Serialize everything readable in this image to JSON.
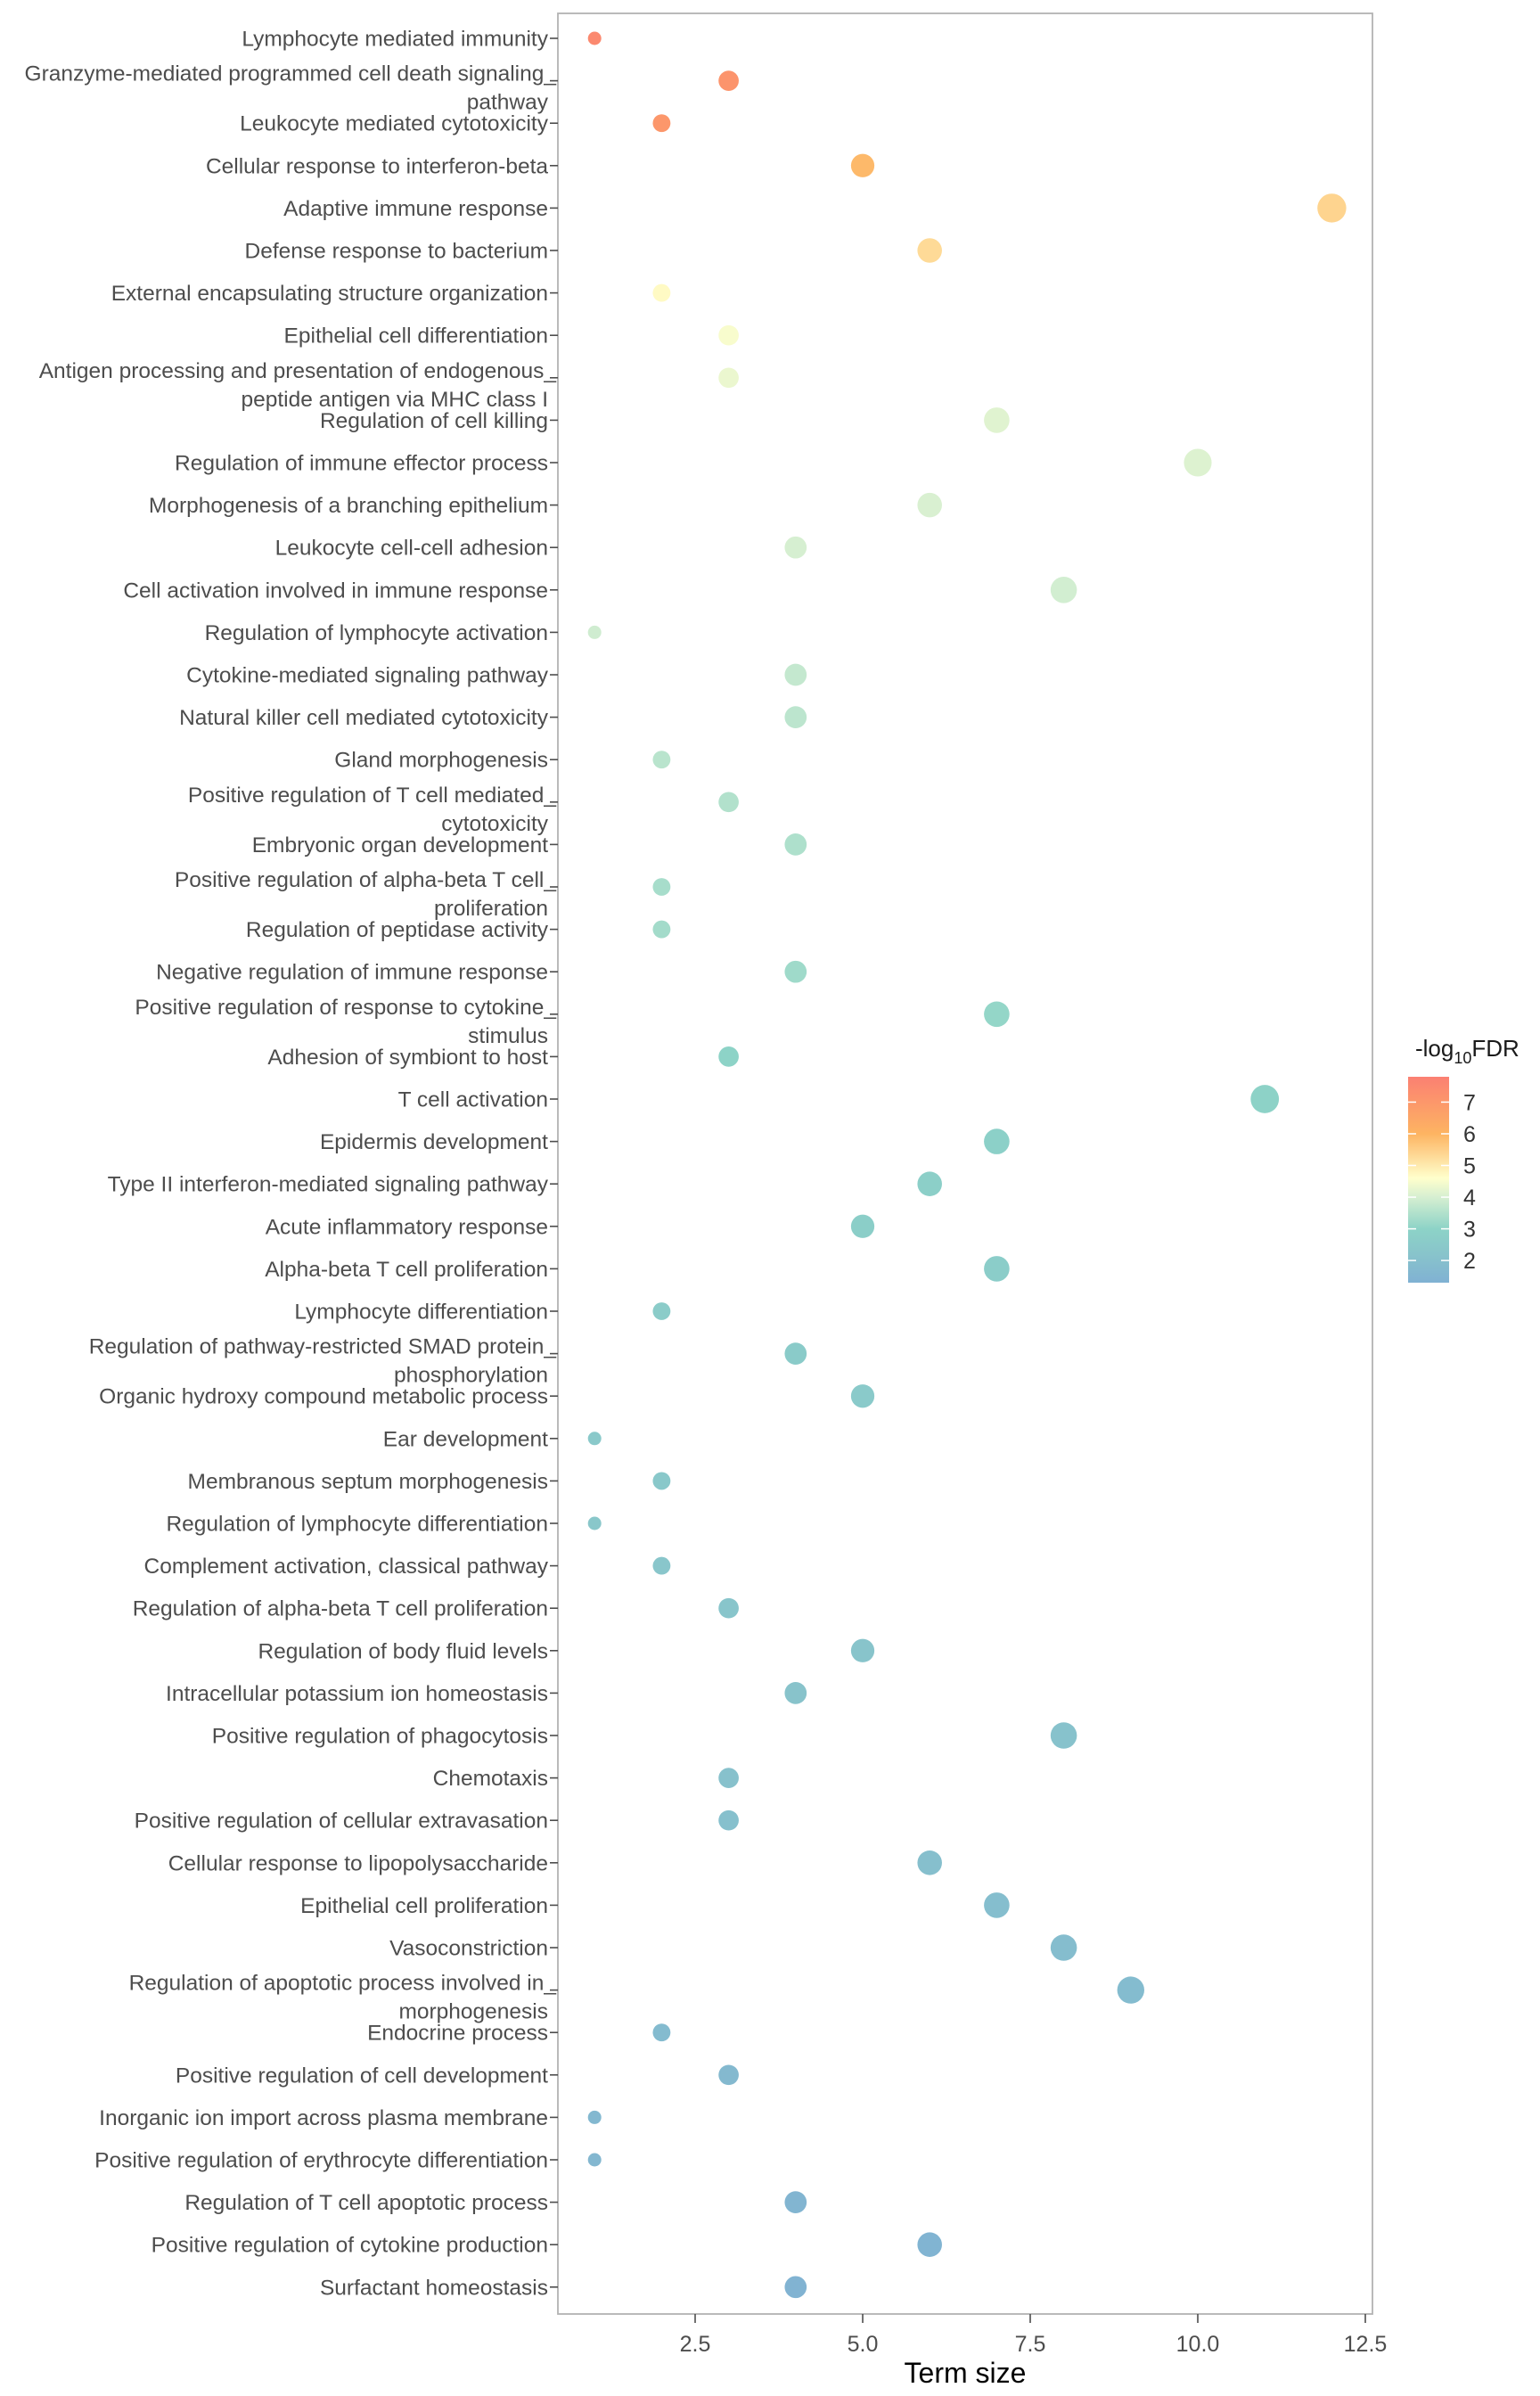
{
  "chart_data": {
    "type": "scatter",
    "title": "",
    "xlabel": "Term size",
    "ylabel": "",
    "xlim": [
      0.45,
      12.7
    ],
    "x_ticks": [
      2.5,
      5.0,
      7.5,
      10.0,
      12.5
    ],
    "x_tick_labels": [
      "2.5",
      "5.0",
      "7.5",
      "10.0",
      "12.5"
    ],
    "grid": false,
    "legend": {
      "title_prefix": "-log",
      "title_subscript": "10",
      "title_suffix": "FDR",
      "type": "colorbar",
      "placement": "right",
      "range": [
        1.3,
        7.8
      ],
      "ticks": [
        7,
        6,
        5,
        4,
        3,
        2
      ],
      "tick_labels": [
        "7",
        "6",
        "5",
        "4",
        "3",
        "2"
      ],
      "color_stops": [
        {
          "value": 1.3,
          "color": "#80B1D3"
        },
        {
          "value": 2.2,
          "color": "#88C4CB"
        },
        {
          "value": 3.0,
          "color": "#8DD3C7"
        },
        {
          "value": 4.0,
          "color": "#D6EFD1"
        },
        {
          "value": 4.6,
          "color": "#FFFFCC"
        },
        {
          "value": 6.0,
          "color": "#FDB462"
        },
        {
          "value": 7.8,
          "color": "#FB8072"
        }
      ]
    },
    "size_encoding": "Term size",
    "points": [
      {
        "term": "Lymphocyte mediated immunity",
        "lines": [
          "Lymphocyte mediated immunity"
        ],
        "term_size": 1,
        "neg_log10_fdr": 7.5
      },
      {
        "term": "Granzyme-mediated programmed cell death signaling pathway",
        "lines": [
          "Granzyme-mediated programmed cell death signaling_",
          "pathway"
        ],
        "term_size": 3,
        "neg_log10_fdr": 7.1
      },
      {
        "term": "Leukocyte mediated cytotoxicity",
        "lines": [
          "Leukocyte mediated cytotoxicity"
        ],
        "term_size": 2,
        "neg_log10_fdr": 7.0
      },
      {
        "term": "Cellular response to interferon-beta",
        "lines": [
          "Cellular response to interferon-beta"
        ],
        "term_size": 5,
        "neg_log10_fdr": 5.9
      },
      {
        "term": "Adaptive immune response",
        "lines": [
          "Adaptive immune response"
        ],
        "term_size": 12,
        "neg_log10_fdr": 5.4
      },
      {
        "term": "Defense response to bacterium",
        "lines": [
          "Defense response to bacterium"
        ],
        "term_size": 6,
        "neg_log10_fdr": 5.3
      },
      {
        "term": "External encapsulating structure organization",
        "lines": [
          "External encapsulating structure organization"
        ],
        "term_size": 2,
        "neg_log10_fdr": 4.7
      },
      {
        "term": "Epithelial cell differentiation",
        "lines": [
          "Epithelial cell differentiation"
        ],
        "term_size": 3,
        "neg_log10_fdr": 4.5
      },
      {
        "term": "Antigen processing and presentation of endogenous peptide antigen via MHC class I",
        "lines": [
          "Antigen processing and presentation of endogenous_",
          "peptide antigen via MHC class I"
        ],
        "term_size": 3,
        "neg_log10_fdr": 4.3
      },
      {
        "term": "Regulation of cell killing",
        "lines": [
          "Regulation of cell killing"
        ],
        "term_size": 7,
        "neg_log10_fdr": 4.15
      },
      {
        "term": "Regulation of immune effector process",
        "lines": [
          "Regulation of immune effector process"
        ],
        "term_size": 10,
        "neg_log10_fdr": 4.1
      },
      {
        "term": "Morphogenesis of a branching epithelium",
        "lines": [
          "Morphogenesis of a branching epithelium"
        ],
        "term_size": 6,
        "neg_log10_fdr": 4.05
      },
      {
        "term": "Leukocyte cell-cell adhesion",
        "lines": [
          "Leukocyte cell-cell adhesion"
        ],
        "term_size": 4,
        "neg_log10_fdr": 4.0
      },
      {
        "term": "Cell activation involved in immune response",
        "lines": [
          "Cell activation involved in immune response"
        ],
        "term_size": 8,
        "neg_log10_fdr": 3.95
      },
      {
        "term": "Regulation of lymphocyte activation",
        "lines": [
          "Regulation of lymphocyte activation"
        ],
        "term_size": 1,
        "neg_log10_fdr": 3.9
      },
      {
        "term": "Cytokine-mediated signaling pathway",
        "lines": [
          "Cytokine-mediated signaling pathway"
        ],
        "term_size": 4,
        "neg_log10_fdr": 3.75
      },
      {
        "term": "Natural killer cell mediated cytotoxicity",
        "lines": [
          "Natural killer cell mediated cytotoxicity"
        ],
        "term_size": 4,
        "neg_log10_fdr": 3.65
      },
      {
        "term": "Gland morphogenesis",
        "lines": [
          "Gland morphogenesis"
        ],
        "term_size": 2,
        "neg_log10_fdr": 3.6
      },
      {
        "term": "Positive regulation of T cell mediated cytotoxicity",
        "lines": [
          "Positive regulation of T cell mediated_",
          "cytotoxicity"
        ],
        "term_size": 3,
        "neg_log10_fdr": 3.5
      },
      {
        "term": "Embryonic organ development",
        "lines": [
          "Embryonic organ development"
        ],
        "term_size": 4,
        "neg_log10_fdr": 3.45
      },
      {
        "term": "Positive regulation of alpha-beta T cell proliferation",
        "lines": [
          "Positive regulation of alpha-beta T cell_",
          "proliferation"
        ],
        "term_size": 2,
        "neg_log10_fdr": 3.35
      },
      {
        "term": "Regulation of peptidase activity",
        "lines": [
          "Regulation of peptidase activity"
        ],
        "term_size": 2,
        "neg_log10_fdr": 3.3
      },
      {
        "term": "Negative regulation of immune response",
        "lines": [
          "Negative regulation of immune response"
        ],
        "term_size": 4,
        "neg_log10_fdr": 3.25
      },
      {
        "term": "Positive regulation of response to cytokine stimulus",
        "lines": [
          "Positive regulation of response to cytokine_",
          "stimulus"
        ],
        "term_size": 7,
        "neg_log10_fdr": 3.1
      },
      {
        "term": "Adhesion of symbiont to host",
        "lines": [
          "Adhesion of symbiont to host"
        ],
        "term_size": 3,
        "neg_log10_fdr": 3.0
      },
      {
        "term": "T cell activation",
        "lines": [
          "T cell activation"
        ],
        "term_size": 11,
        "neg_log10_fdr": 2.95
      },
      {
        "term": "Epidermis development",
        "lines": [
          "Epidermis development"
        ],
        "term_size": 7,
        "neg_log10_fdr": 2.85
      },
      {
        "term": "Type II interferon-mediated signaling pathway",
        "lines": [
          "Type II interferon-mediated signaling pathway"
        ],
        "term_size": 6,
        "neg_log10_fdr": 2.8
      },
      {
        "term": "Acute inflammatory response",
        "lines": [
          "Acute inflammatory response"
        ],
        "term_size": 5,
        "neg_log10_fdr": 2.75
      },
      {
        "term": "Alpha-beta T cell proliferation",
        "lines": [
          "Alpha-beta T cell proliferation"
        ],
        "term_size": 7,
        "neg_log10_fdr": 2.7
      },
      {
        "term": "Lymphocyte differentiation",
        "lines": [
          "Lymphocyte differentiation"
        ],
        "term_size": 2,
        "neg_log10_fdr": 2.6
      },
      {
        "term": "Regulation of pathway-restricted SMAD protein phosphorylation",
        "lines": [
          "Regulation of pathway-restricted SMAD protein_",
          "phosphorylation"
        ],
        "term_size": 4,
        "neg_log10_fdr": 2.55
      },
      {
        "term": "Organic hydroxy compound metabolic process",
        "lines": [
          "Organic hydroxy compound metabolic process"
        ],
        "term_size": 5,
        "neg_log10_fdr": 2.5
      },
      {
        "term": "Ear development",
        "lines": [
          "Ear development"
        ],
        "term_size": 1,
        "neg_log10_fdr": 2.45
      },
      {
        "term": "Membranous septum morphogenesis",
        "lines": [
          "Membranous septum morphogenesis"
        ],
        "term_size": 2,
        "neg_log10_fdr": 2.4
      },
      {
        "term": "Regulation of lymphocyte differentiation",
        "lines": [
          "Regulation of lymphocyte differentiation"
        ],
        "term_size": 1,
        "neg_log10_fdr": 2.35
      },
      {
        "term": "Complement activation, classical pathway",
        "lines": [
          "Complement activation, classical pathway"
        ],
        "term_size": 2,
        "neg_log10_fdr": 2.3
      },
      {
        "term": "Regulation of alpha-beta T cell proliferation",
        "lines": [
          "Regulation of alpha-beta T cell proliferation"
        ],
        "term_size": 3,
        "neg_log10_fdr": 2.25
      },
      {
        "term": "Regulation of body fluid levels",
        "lines": [
          "Regulation of body fluid levels"
        ],
        "term_size": 5,
        "neg_log10_fdr": 2.2
      },
      {
        "term": "Intracellular potassium ion homeostasis",
        "lines": [
          "Intracellular potassium ion homeostasis"
        ],
        "term_size": 4,
        "neg_log10_fdr": 2.15
      },
      {
        "term": "Positive regulation of phagocytosis",
        "lines": [
          "Positive regulation of phagocytosis"
        ],
        "term_size": 8,
        "neg_log10_fdr": 2.1
      },
      {
        "term": "Chemotaxis",
        "lines": [
          "Chemotaxis"
        ],
        "term_size": 3,
        "neg_log10_fdr": 2.05
      },
      {
        "term": "Positive regulation of cellular extravasation",
        "lines": [
          "Positive regulation of cellular extravasation"
        ],
        "term_size": 3,
        "neg_log10_fdr": 2.0
      },
      {
        "term": "Cellular response to lipopolysaccharide",
        "lines": [
          "Cellular response to lipopolysaccharide"
        ],
        "term_size": 6,
        "neg_log10_fdr": 1.95
      },
      {
        "term": "Epithelial cell proliferation",
        "lines": [
          "Epithelial cell proliferation"
        ],
        "term_size": 7,
        "neg_log10_fdr": 1.9
      },
      {
        "term": "Vasoconstriction",
        "lines": [
          "Vasoconstriction"
        ],
        "term_size": 8,
        "neg_log10_fdr": 1.85
      },
      {
        "term": "Regulation of apoptotic process involved in morphogenesis",
        "lines": [
          "Regulation of apoptotic process involved in_",
          "morphogenesis"
        ],
        "term_size": 9,
        "neg_log10_fdr": 1.8
      },
      {
        "term": "Endocrine process",
        "lines": [
          "Endocrine process"
        ],
        "term_size": 2,
        "neg_log10_fdr": 1.75
      },
      {
        "term": "Positive regulation of cell development",
        "lines": [
          "Positive regulation of cell development"
        ],
        "term_size": 3,
        "neg_log10_fdr": 1.7
      },
      {
        "term": "Inorganic ion import across plasma membrane",
        "lines": [
          "Inorganic ion import across plasma membrane"
        ],
        "term_size": 1,
        "neg_log10_fdr": 1.65
      },
      {
        "term": "Positive regulation of erythrocyte differentiation",
        "lines": [
          "Positive regulation of erythrocyte differentiation"
        ],
        "term_size": 1,
        "neg_log10_fdr": 1.6
      },
      {
        "term": "Regulation of T cell apoptotic process",
        "lines": [
          "Regulation of T cell apoptotic process"
        ],
        "term_size": 4,
        "neg_log10_fdr": 1.5
      },
      {
        "term": "Positive regulation of cytokine production",
        "lines": [
          "Positive regulation of cytokine production"
        ],
        "term_size": 6,
        "neg_log10_fdr": 1.45
      },
      {
        "term": "Surfactant homeostasis",
        "lines": [
          "Surfactant homeostasis"
        ],
        "term_size": 4,
        "neg_log10_fdr": 1.4
      }
    ]
  }
}
